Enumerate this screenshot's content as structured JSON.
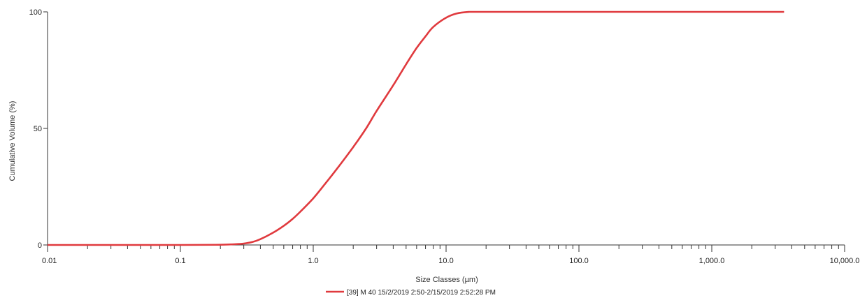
{
  "chart_data": {
    "type": "line",
    "title": "",
    "xlabel": "Size Classes (µm)",
    "ylabel": "Cumulative Volume (%)",
    "x_scale": "log",
    "xlim": [
      0.01,
      10000
    ],
    "ylim": [
      0,
      100
    ],
    "x_ticks": [
      0.01,
      0.1,
      1,
      10,
      100,
      1000,
      10000
    ],
    "x_tick_labels": [
      "0.01",
      "0.1",
      "1.0",
      "10.0",
      "100.0",
      "1,000.0",
      "10,000.0"
    ],
    "y_ticks": [
      0,
      50,
      100
    ],
    "y_tick_labels": [
      "0",
      "50",
      "100"
    ],
    "grid": false,
    "legend_position": "bottom-center",
    "series": [
      {
        "name": "[39] M 40 15/2/2019 2:50-2/15/2019 2:52:28 PM",
        "color": "#e03a3e",
        "x": [
          0.01,
          0.1,
          0.2,
          0.25,
          0.3,
          0.35,
          0.4,
          0.5,
          0.6,
          0.7,
          0.8,
          1.0,
          1.2,
          1.5,
          2.0,
          2.5,
          3.0,
          4.0,
          5.0,
          6.0,
          7.0,
          8.0,
          10.0,
          12.0,
          15.0,
          17.0,
          20.0,
          100.0,
          1000.0,
          3500.0
        ],
        "y": [
          0,
          0,
          0.1,
          0.3,
          0.6,
          1.3,
          2.5,
          5.3,
          8.2,
          11.2,
          14.3,
          20.0,
          25.5,
          32.5,
          42.0,
          50.0,
          57.5,
          68.5,
          77.5,
          84.5,
          89.5,
          93.5,
          97.5,
          99.3,
          100,
          100,
          100,
          100,
          100,
          100
        ]
      }
    ]
  }
}
